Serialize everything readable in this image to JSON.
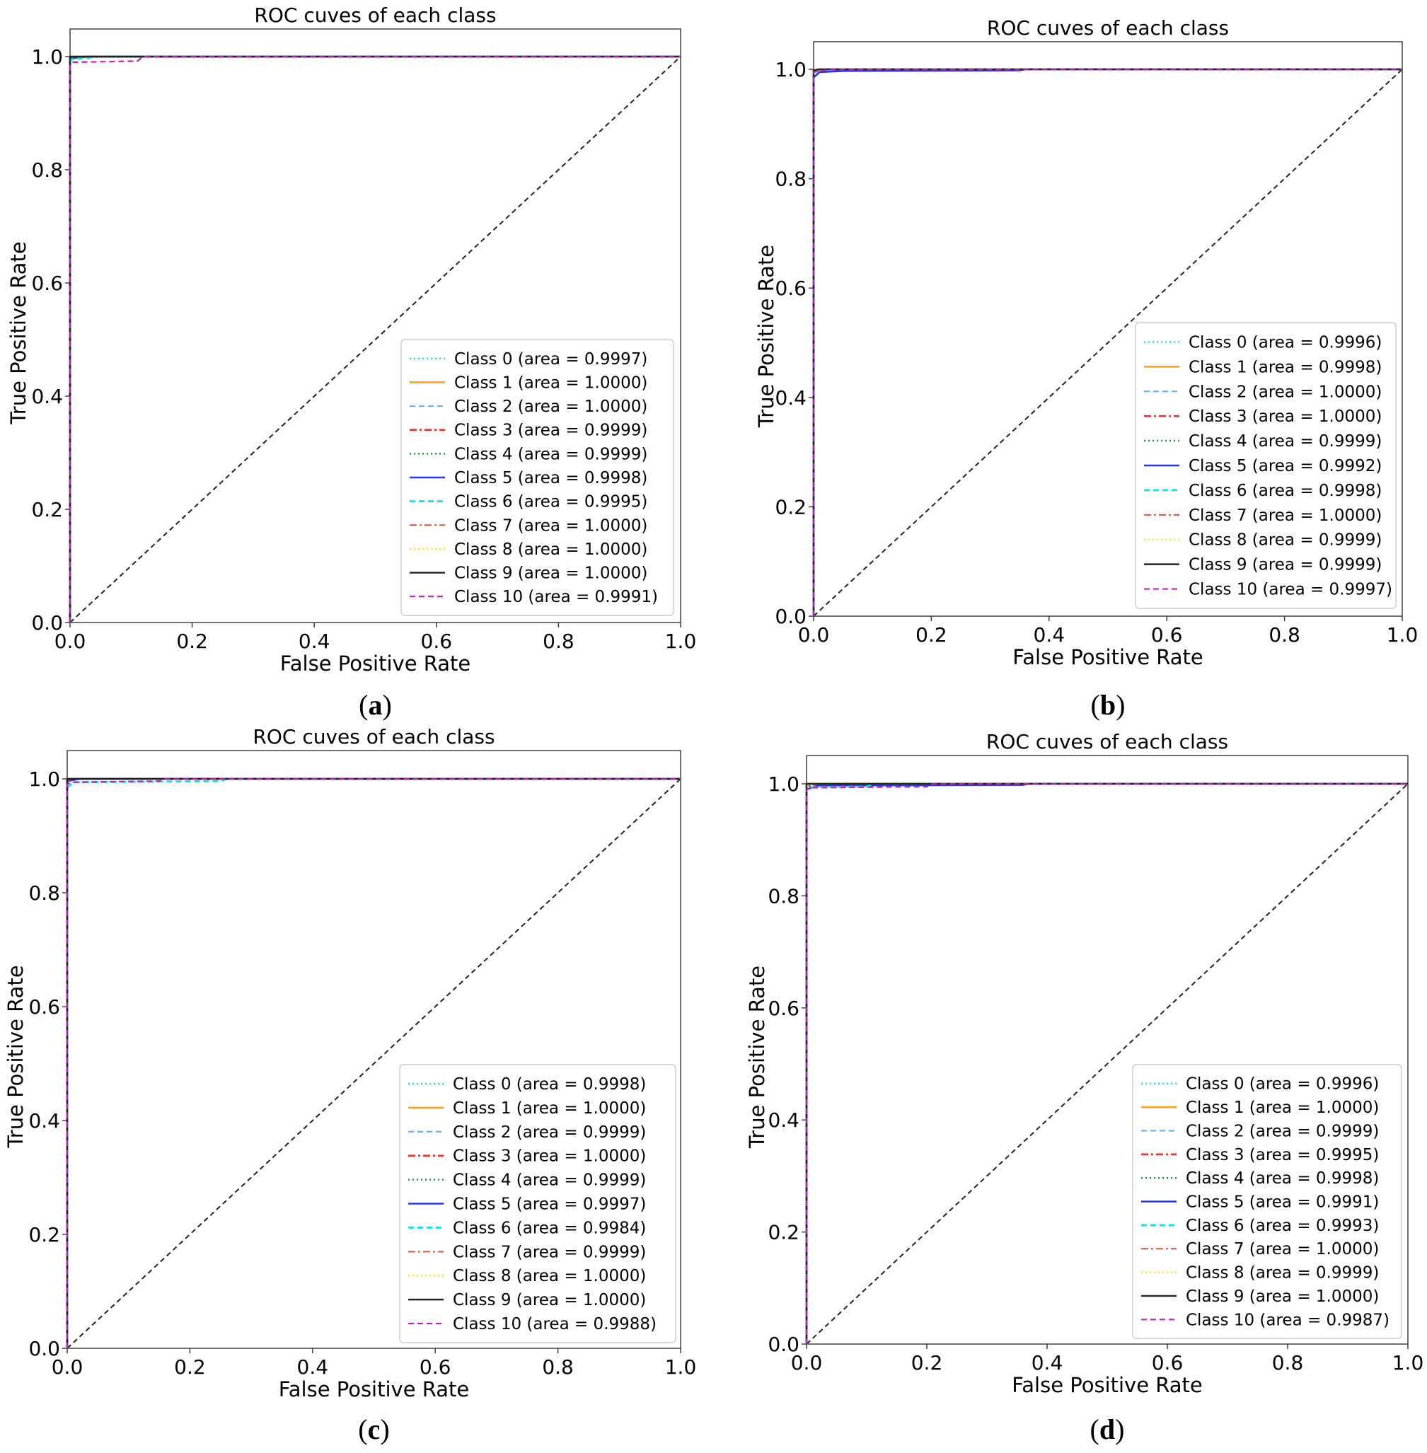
{
  "colors": {
    "class0": "#00e5ee",
    "class1": "#ff9f1a",
    "class2": "#5fa8ff",
    "class3": "#ff2a2a",
    "class4": "#1a9a3a",
    "class5": "#2434ff",
    "class6": "#00e5ee",
    "class7": "#e0503a",
    "class8": "#ffe600",
    "class9": "#222222",
    "class10": "#c020b0",
    "diagonal": "#222222"
  },
  "chart_data": [
    {
      "type": "line",
      "panel": "a",
      "caption": {
        "open": "(",
        "letter": "a",
        "close": ")"
      },
      "title": "ROC cuves of each class",
      "xlabel": "False Positive Rate",
      "ylabel": "True Positive Rate",
      "xlim": [
        0.0,
        1.0
      ],
      "ylim": [
        0.0,
        1.0
      ],
      "xticks": [
        "0.0",
        "0.2",
        "0.4",
        "0.6",
        "0.8",
        "1.0"
      ],
      "yticks": [
        "0.0",
        "0.2",
        "0.4",
        "0.6",
        "0.8",
        "1.0"
      ],
      "legend_position": "lower-right",
      "diagonal": {
        "x": [
          0,
          1
        ],
        "y": [
          0,
          1
        ]
      },
      "series": [
        {
          "name": "Class 0 (area = 0.9997)",
          "class": 0,
          "x": [
            0,
            0.0,
            0.01,
            1.0
          ],
          "y": [
            0,
            0.996,
            0.999,
            1.0
          ]
        },
        {
          "name": "Class 1 (area = 1.0000)",
          "class": 1,
          "x": [
            0,
            0.0,
            1.0
          ],
          "y": [
            0,
            1.0,
            1.0
          ]
        },
        {
          "name": "Class 2 (area = 1.0000)",
          "class": 2,
          "x": [
            0,
            0.0,
            1.0
          ],
          "y": [
            0,
            1.0,
            1.0
          ]
        },
        {
          "name": "Class 3 (area = 0.9999)",
          "class": 3,
          "x": [
            0,
            0.0,
            0.02,
            1.0
          ],
          "y": [
            0,
            0.998,
            1.0,
            1.0
          ]
        },
        {
          "name": "Class 4 (area = 0.9999)",
          "class": 4,
          "x": [
            0,
            0.0,
            0.02,
            1.0
          ],
          "y": [
            0,
            0.998,
            1.0,
            1.0
          ]
        },
        {
          "name": "Class 5 (area = 0.9998)",
          "class": 5,
          "x": [
            0,
            0.0,
            0.03,
            1.0
          ],
          "y": [
            0,
            0.997,
            1.0,
            1.0
          ]
        },
        {
          "name": "Class 6 (area = 0.9995)",
          "class": 6,
          "x": [
            0,
            0.0,
            0.05,
            1.0
          ],
          "y": [
            0,
            0.995,
            1.0,
            1.0
          ]
        },
        {
          "name": "Class 7 (area = 1.0000)",
          "class": 7,
          "x": [
            0,
            0.0,
            1.0
          ],
          "y": [
            0,
            1.0,
            1.0
          ]
        },
        {
          "name": "Class 8 (area = 1.0000)",
          "class": 8,
          "x": [
            0,
            0.0,
            1.0
          ],
          "y": [
            0,
            1.0,
            1.0
          ]
        },
        {
          "name": "Class 9 (area = 1.0000)",
          "class": 9,
          "x": [
            0,
            0.0,
            1.0
          ],
          "y": [
            0,
            1.0,
            1.0
          ]
        },
        {
          "name": "Class 10 (area = 0.9991)",
          "class": 10,
          "x": [
            0,
            0.0,
            0.005,
            0.11,
            0.12,
            1.0
          ],
          "y": [
            0,
            0.985,
            0.99,
            0.992,
            1.0,
            1.0
          ]
        }
      ]
    },
    {
      "type": "line",
      "panel": "b",
      "caption": {
        "open": "(",
        "letter": "b",
        "close": ")"
      },
      "title": "ROC cuves of each class",
      "xlabel": "False Positive Rate",
      "ylabel": "True Positive Rate",
      "xlim": [
        0.0,
        1.0
      ],
      "ylim": [
        0.0,
        1.05
      ],
      "xticks": [
        "0.0",
        "0.2",
        "0.4",
        "0.6",
        "0.8",
        "1.0"
      ],
      "yticks": [
        "0.0",
        "0.2",
        "0.4",
        "0.6",
        "0.8",
        "1.0"
      ],
      "legend_position": "lower-right",
      "diagonal": {
        "x": [
          0,
          1
        ],
        "y": [
          0,
          1
        ]
      },
      "series": [
        {
          "name": "Class 0 (area = 0.9996)",
          "class": 0,
          "x": [
            0,
            0.0,
            0.03,
            1.0
          ],
          "y": [
            0,
            0.995,
            1.0,
            1.0
          ]
        },
        {
          "name": "Class 1 (area = 0.9998)",
          "class": 1,
          "x": [
            0,
            0.0,
            0.02,
            1.0
          ],
          "y": [
            0,
            0.997,
            1.0,
            1.0
          ]
        },
        {
          "name": "Class 2 (area = 1.0000)",
          "class": 2,
          "x": [
            0,
            0.0,
            1.0
          ],
          "y": [
            0,
            1.0,
            1.0
          ]
        },
        {
          "name": "Class 3 (area = 1.0000)",
          "class": 3,
          "x": [
            0,
            0.0,
            1.0
          ],
          "y": [
            0,
            1.0,
            1.0
          ]
        },
        {
          "name": "Class 4 (area = 0.9999)",
          "class": 4,
          "x": [
            0,
            0.0,
            0.01,
            1.0
          ],
          "y": [
            0,
            0.998,
            1.0,
            1.0
          ]
        },
        {
          "name": "Class 5 (area = 0.9992)",
          "class": 5,
          "x": [
            0,
            0.0,
            0.01,
            0.05,
            0.35,
            0.36,
            1.0
          ],
          "y": [
            0,
            0.985,
            0.995,
            0.997,
            0.998,
            1.0,
            1.0
          ]
        },
        {
          "name": "Class 6 (area = 0.9998)",
          "class": 6,
          "x": [
            0,
            0.0,
            0.02,
            1.0
          ],
          "y": [
            0,
            0.997,
            1.0,
            1.0
          ]
        },
        {
          "name": "Class 7 (area = 1.0000)",
          "class": 7,
          "x": [
            0,
            0.0,
            1.0
          ],
          "y": [
            0,
            1.0,
            1.0
          ]
        },
        {
          "name": "Class 8 (area = 0.9999)",
          "class": 8,
          "x": [
            0,
            0.0,
            0.01,
            1.0
          ],
          "y": [
            0,
            0.998,
            1.0,
            1.0
          ]
        },
        {
          "name": "Class 9 (area = 0.9999)",
          "class": 9,
          "x": [
            0,
            0.0,
            0.01,
            1.0
          ],
          "y": [
            0,
            0.998,
            1.0,
            1.0
          ]
        },
        {
          "name": "Class 10 (area = 0.9997)",
          "class": 10,
          "x": [
            0,
            0.0,
            0.03,
            1.0
          ],
          "y": [
            0,
            0.995,
            1.0,
            1.0
          ]
        }
      ]
    },
    {
      "type": "line",
      "panel": "c",
      "caption": {
        "open": "(",
        "letter": "c",
        "close": ")"
      },
      "title": "ROC cuves of each class",
      "xlabel": "False Positive Rate",
      "ylabel": "True Positive Rate",
      "xlim": [
        0.0,
        1.0
      ],
      "ylim": [
        0.0,
        1.05
      ],
      "xticks": [
        "0.0",
        "0.2",
        "0.4",
        "0.6",
        "0.8",
        "1.0"
      ],
      "yticks": [
        "0.0",
        "0.2",
        "0.4",
        "0.6",
        "0.8",
        "1.0"
      ],
      "legend_position": "lower-right",
      "diagonal": {
        "x": [
          0,
          1
        ],
        "y": [
          0,
          1
        ]
      },
      "series": [
        {
          "name": "Class 0 (area = 0.9998)",
          "class": 0,
          "x": [
            0,
            0.0,
            0.02,
            1.0
          ],
          "y": [
            0,
            0.997,
            1.0,
            1.0
          ]
        },
        {
          "name": "Class 1 (area = 1.0000)",
          "class": 1,
          "x": [
            0,
            0.0,
            1.0
          ],
          "y": [
            0,
            1.0,
            1.0
          ]
        },
        {
          "name": "Class 2 (area = 0.9999)",
          "class": 2,
          "x": [
            0,
            0.0,
            0.01,
            1.0
          ],
          "y": [
            0,
            0.998,
            1.0,
            1.0
          ]
        },
        {
          "name": "Class 3 (area = 1.0000)",
          "class": 3,
          "x": [
            0,
            0.0,
            1.0
          ],
          "y": [
            0,
            1.0,
            1.0
          ]
        },
        {
          "name": "Class 4 (area = 0.9999)",
          "class": 4,
          "x": [
            0,
            0.0,
            0.01,
            1.0
          ],
          "y": [
            0,
            0.998,
            1.0,
            1.0
          ]
        },
        {
          "name": "Class 5 (area = 0.9997)",
          "class": 5,
          "x": [
            0,
            0.0,
            0.02,
            1.0
          ],
          "y": [
            0,
            0.996,
            1.0,
            1.0
          ]
        },
        {
          "name": "Class 6 (area = 0.9984)",
          "class": 6,
          "x": [
            0,
            0.0,
            0.01,
            0.25,
            0.26,
            1.0
          ],
          "y": [
            0,
            0.985,
            0.994,
            0.996,
            1.0,
            1.0
          ]
        },
        {
          "name": "Class 7 (area = 0.9999)",
          "class": 7,
          "x": [
            0,
            0.0,
            0.01,
            1.0
          ],
          "y": [
            0,
            0.998,
            1.0,
            1.0
          ]
        },
        {
          "name": "Class 8 (area = 1.0000)",
          "class": 8,
          "x": [
            0,
            0.0,
            1.0
          ],
          "y": [
            0,
            1.0,
            1.0
          ]
        },
        {
          "name": "Class 9 (area = 1.0000)",
          "class": 9,
          "x": [
            0,
            0.0,
            1.0
          ],
          "y": [
            0,
            1.0,
            1.0
          ]
        },
        {
          "name": "Class 10 (area = 0.9988)",
          "class": 10,
          "x": [
            0,
            0.0,
            0.005,
            0.15,
            0.16,
            1.0
          ],
          "y": [
            0,
            0.99,
            0.994,
            0.996,
            1.0,
            1.0
          ]
        }
      ]
    },
    {
      "type": "line",
      "panel": "d",
      "caption": {
        "open": "(",
        "letter": "d",
        "close": ")"
      },
      "title": "ROC cuves of each class",
      "xlabel": "False Positive Rate",
      "ylabel": "True Positive Rate",
      "xlim": [
        0.0,
        1.0
      ],
      "ylim": [
        0.0,
        1.05
      ],
      "xticks": [
        "0.0",
        "0.2",
        "0.4",
        "0.6",
        "0.8",
        "1.0"
      ],
      "yticks": [
        "0.0",
        "0.2",
        "0.4",
        "0.6",
        "0.8",
        "1.0"
      ],
      "legend_position": "lower-right",
      "diagonal": {
        "x": [
          0,
          1
        ],
        "y": [
          0,
          1
        ]
      },
      "series": [
        {
          "name": "Class 0 (area = 0.9996)",
          "class": 0,
          "x": [
            0,
            0.0,
            0.03,
            1.0
          ],
          "y": [
            0,
            0.995,
            1.0,
            1.0
          ]
        },
        {
          "name": "Class 1 (area = 1.0000)",
          "class": 1,
          "x": [
            0,
            0.0,
            1.0
          ],
          "y": [
            0,
            1.0,
            1.0
          ]
        },
        {
          "name": "Class 2 (area = 0.9999)",
          "class": 2,
          "x": [
            0,
            0.0,
            0.01,
            1.0
          ],
          "y": [
            0,
            0.998,
            1.0,
            1.0
          ]
        },
        {
          "name": "Class 3 (area = 0.9995)",
          "class": 3,
          "x": [
            0,
            0.0,
            0.05,
            1.0
          ],
          "y": [
            0,
            0.995,
            1.0,
            1.0
          ]
        },
        {
          "name": "Class 4 (area = 0.9998)",
          "class": 4,
          "x": [
            0,
            0.0,
            0.02,
            1.0
          ],
          "y": [
            0,
            0.997,
            1.0,
            1.0
          ]
        },
        {
          "name": "Class 5 (area = 0.9991)",
          "class": 5,
          "x": [
            0,
            0.0,
            0.02,
            0.36,
            0.37,
            1.0
          ],
          "y": [
            0,
            0.99,
            0.997,
            0.998,
            1.0,
            1.0
          ]
        },
        {
          "name": "Class 6 (area = 0.9993)",
          "class": 6,
          "x": [
            0,
            0.0,
            0.1,
            0.11,
            1.0
          ],
          "y": [
            0,
            0.994,
            0.995,
            1.0,
            1.0
          ]
        },
        {
          "name": "Class 7 (area = 1.0000)",
          "class": 7,
          "x": [
            0,
            0.0,
            1.0
          ],
          "y": [
            0,
            1.0,
            1.0
          ]
        },
        {
          "name": "Class 8 (area = 0.9999)",
          "class": 8,
          "x": [
            0,
            0.0,
            0.01,
            1.0
          ],
          "y": [
            0,
            0.998,
            1.0,
            1.0
          ]
        },
        {
          "name": "Class 9 (area = 1.0000)",
          "class": 9,
          "x": [
            0,
            0.0,
            1.0
          ],
          "y": [
            0,
            1.0,
            1.0
          ]
        },
        {
          "name": "Class 10 (area = 0.9987)",
          "class": 10,
          "x": [
            0,
            0.0,
            0.01,
            0.2,
            0.21,
            1.0
          ],
          "y": [
            0,
            0.99,
            0.993,
            0.995,
            1.0,
            1.0
          ]
        }
      ]
    }
  ]
}
